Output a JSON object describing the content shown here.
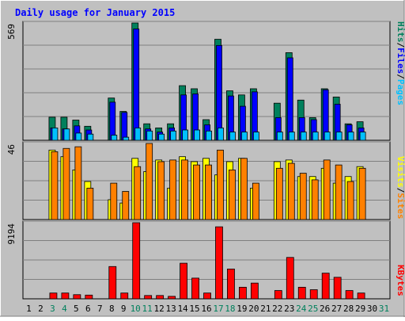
{
  "title": "Daily usage for January 2015",
  "colors": {
    "background": "#c0c0c0",
    "title_text": "#0000ff",
    "hits": "#00805c",
    "files": "#0000ff",
    "pages": "#00c0ff",
    "visits": "#ffff00",
    "sites": "#ff8000",
    "kbytes": "#ff0000",
    "weekend_label": "#00805c",
    "weekday_label": "#000000"
  },
  "legend": {
    "pages": "Pages",
    "files": "Files",
    "hits": "Hits",
    "visits": "Visits",
    "sites": "Sites",
    "kbytes": "KBytes",
    "separator": "/"
  },
  "chart_data": {
    "type": "bar",
    "title": "Daily usage for January 2015",
    "days": [
      1,
      2,
      3,
      4,
      5,
      6,
      7,
      8,
      9,
      10,
      11,
      12,
      13,
      14,
      15,
      16,
      17,
      18,
      19,
      20,
      21,
      22,
      23,
      24,
      25,
      26,
      27,
      28,
      29,
      30,
      31
    ],
    "weekend_days": [
      3,
      4,
      10,
      11,
      17,
      18,
      24,
      25,
      31
    ],
    "panels": [
      {
        "name": "hits-files-pages",
        "ymax_label": "569",
        "ymax": 569,
        "series": [
          {
            "name": "Hits",
            "values": [
              0,
              0,
              112,
              112,
              98,
              68,
              0,
              205,
              140,
              569,
              80,
              60,
              80,
              265,
              250,
              100,
              490,
              240,
              220,
              250,
              0,
              180,
              425,
              195,
              110,
              250,
              210,
              80,
              90,
              0,
              0
            ]
          },
          {
            "name": "Files",
            "values": [
              0,
              0,
              60,
              55,
              70,
              50,
              0,
              185,
              135,
              540,
              55,
              40,
              60,
              220,
              225,
              75,
              460,
              215,
              165,
              235,
              0,
              110,
              400,
              110,
              100,
              245,
              175,
              75,
              60,
              0,
              0
            ]
          },
          {
            "name": "Pages",
            "values": [
              0,
              0,
              60,
              55,
              35,
              30,
              0,
              25,
              15,
              60,
              45,
              30,
              45,
              50,
              50,
              45,
              60,
              40,
              40,
              40,
              0,
              40,
              40,
              40,
              40,
              40,
              40,
              40,
              40,
              0,
              0
            ]
          }
        ]
      },
      {
        "name": "visits-sites",
        "ymax_label": "46",
        "ymax": 46,
        "series": [
          {
            "name": "Visits",
            "values": [
              0,
              0,
              42,
              38,
              30,
              23,
              0,
              12,
              10,
              37,
              29,
              36,
              19,
              38,
              35,
              37,
              27,
              35,
              37,
              19,
              0,
              35,
              36,
              26,
              26,
              31,
              22,
              26,
              32,
              0,
              0
            ]
          },
          {
            "name": "Sites",
            "values": [
              0,
              0,
              41,
              43,
              44,
              19,
              0,
              22,
              17,
              32,
              46,
              35,
              36,
              36,
              33,
              33,
              42,
              30,
              37,
              22,
              0,
              31,
              34,
              28,
              24,
              36,
              33,
              23,
              31,
              0,
              0
            ]
          }
        ]
      },
      {
        "name": "kbytes",
        "ymax_label": "9194",
        "ymax": 9194,
        "series": [
          {
            "name": "KBytes",
            "values": [
              0,
              0,
              700,
              700,
              500,
              450,
              0,
              3900,
              700,
              9194,
              400,
              400,
              300,
              4300,
              2500,
              700,
              8700,
              3600,
              1400,
              1900,
              0,
              1000,
              5000,
              1400,
              1100,
              3100,
              2600,
              1000,
              700,
              0,
              0
            ]
          }
        ]
      }
    ]
  }
}
